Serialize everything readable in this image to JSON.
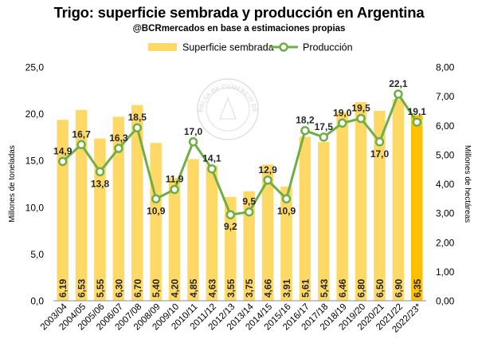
{
  "title": "Trigo: superficie sembrada y producción en Argentina",
  "subtitle": "@BCRmercados en base a estimaciones propias",
  "watermark": "BOLSA DE COMERCIO DE ROSARIO",
  "colors": {
    "bar": "#FFD966",
    "bar_highlight": "#FFC000",
    "line": "#70AD47",
    "marker_fill": "#FFFFFF"
  },
  "chart_data": {
    "type": "bar+line",
    "categories": [
      "2003/04",
      "2004/05",
      "2005/06",
      "2006/07",
      "2007/08",
      "2008/09",
      "2009/10",
      "2010/11",
      "2011/12",
      "2012/13",
      "2013/14",
      "2014/15",
      "2015/16",
      "2016/17",
      "2017/18",
      "2018/19",
      "2019/20",
      "2020/21",
      "2021/22",
      "2022/23*"
    ],
    "series": [
      {
        "name": "Superficie sembrada",
        "kind": "bar",
        "axis": "right",
        "values": [
          6.19,
          6.53,
          5.55,
          6.3,
          6.7,
          5.4,
          4.2,
          4.85,
          4.63,
          3.55,
          3.75,
          4.66,
          3.91,
          5.61,
          5.43,
          6.46,
          6.8,
          6.5,
          6.9,
          6.35
        ],
        "labels": [
          "6,19",
          "6,53",
          "5,55",
          "6,30",
          "6,70",
          "5,40",
          "4,20",
          "4,85",
          "4,63",
          "3,55",
          "3,75",
          "4,66",
          "3,91",
          "5,61",
          "5,43",
          "6,46",
          "6,80",
          "6,50",
          "6,90",
          "6,35"
        ]
      },
      {
        "name": "Producción",
        "kind": "line",
        "axis": "left",
        "values": [
          14.9,
          16.7,
          13.8,
          16.3,
          18.5,
          10.9,
          11.9,
          17.0,
          14.1,
          9.2,
          9.5,
          12.9,
          10.9,
          18.2,
          17.5,
          19.0,
          19.5,
          17.0,
          22.1,
          19.1
        ],
        "labels": [
          "14,9",
          "16,7",
          "13,8",
          "16,3",
          "18,5",
          "10,9",
          "11,9",
          "17,0",
          "14,1",
          "9,2",
          "9,5",
          "12,9",
          "10,9",
          "18,2",
          "17,5",
          "19,0",
          "19,5",
          "17,0",
          "22,1",
          "19,1"
        ]
      }
    ],
    "y_left": {
      "label": "Millones de toneladas",
      "range": [
        0,
        25
      ],
      "ticks": [
        "0,0",
        "5,0",
        "10,0",
        "15,0",
        "20,0",
        "25,0"
      ]
    },
    "y_right": {
      "label": "Millones de hectáreas",
      "range": [
        0,
        8
      ],
      "ticks": [
        "0,00",
        "1,00",
        "2,00",
        "3,00",
        "4,00",
        "5,00",
        "6,00",
        "7,00",
        "8,00"
      ]
    },
    "legend_position": "top",
    "grid": false,
    "highlight_category": "2022/23*"
  }
}
